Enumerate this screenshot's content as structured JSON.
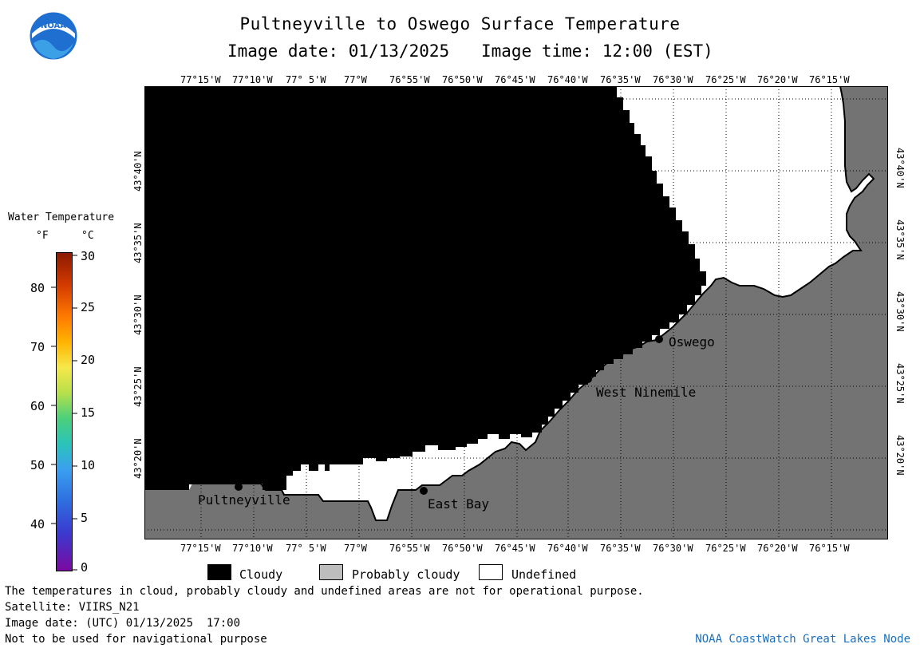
{
  "header": {
    "title": "Pultneyville to Oswego Surface Temperature",
    "image_date_label": "Image date: 01/13/2025",
    "image_time_label": "Image time: 12:00 (EST)"
  },
  "logo": {
    "text": "NOAA",
    "icon": "noaa-logo-icon"
  },
  "map": {
    "lon_ticks": [
      "77°15'W",
      "77°10'W",
      "77° 5'W",
      "77°W",
      "76°55'W",
      "76°50'W",
      "76°45'W",
      "76°40'W",
      "76°35'W",
      "76°30'W",
      "76°25'W",
      "76°20'W",
      "76°15'W"
    ],
    "lat_ticks": [
      "43°40'N",
      "43°35'N",
      "43°30'N",
      "43°25'N",
      "43°20'N"
    ],
    "cities": [
      {
        "name": "Pultneyville"
      },
      {
        "name": "East Bay"
      },
      {
        "name": "West Ninemile"
      },
      {
        "name": "Oswego"
      }
    ],
    "colors": {
      "cloudy": "#000000",
      "probably_cloudy": "#737373",
      "undefined": "#ffffff"
    }
  },
  "colorbar": {
    "title": "Water Temperature",
    "f_unit": "°F",
    "c_unit": "°C",
    "f_labels": [
      "80",
      "70",
      "60",
      "50",
      "40"
    ],
    "c_labels": [
      "30",
      "25",
      "20",
      "15",
      "10",
      "5",
      "0"
    ]
  },
  "legend": {
    "cloudy": "Cloudy",
    "probably_cloudy": "Probably cloudy",
    "undefined": "Undefined"
  },
  "footer": {
    "note": "The temperatures in cloud, probably cloudy and undefined areas are not for operational purpose.",
    "satellite": "Satellite: VIIRS_N21",
    "utc_date": "Image date: (UTC) 01/13/2025  17:00",
    "nav": "Not to be used for navigational purpose",
    "credit": "NOAA CoastWatch Great Lakes Node"
  }
}
